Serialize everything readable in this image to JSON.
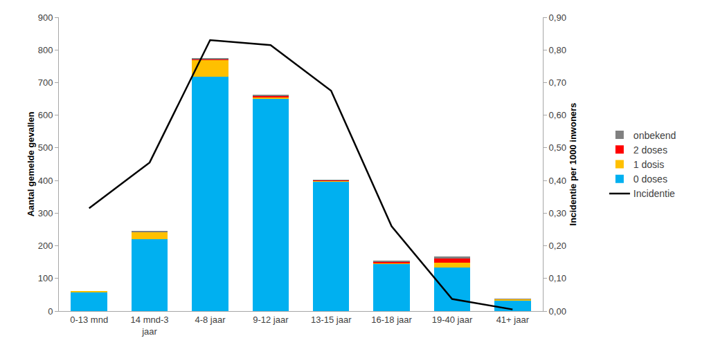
{
  "chart_data": {
    "type": "bar",
    "stacked": true,
    "grid": false,
    "legend": "right",
    "x_label": null,
    "y_label": "Aantal gemelde gevallen",
    "y2_label": "Incidentie per 1000 inwoners",
    "categories": [
      "0-13 mnd",
      "14 mnd-3 jaar",
      "4-8 jaar",
      "9-12 jaar",
      "13-15 jaar",
      "16-18 jaar",
      "19-40 jaar",
      "41+ jaar"
    ],
    "ylim": [
      0,
      900
    ],
    "yticks": [
      0,
      100,
      200,
      300,
      400,
      500,
      600,
      700,
      800,
      900
    ],
    "y2lim": [
      0,
      0.9
    ],
    "y2ticks": [
      {
        "value": 0,
        "label": "0,00"
      },
      {
        "value": 0.1,
        "label": "0,10"
      },
      {
        "value": 0.2,
        "label": "0,20"
      },
      {
        "value": 0.3,
        "label": "0,30"
      },
      {
        "value": 0.4,
        "label": "0,40"
      },
      {
        "value": 0.5,
        "label": "0,50"
      },
      {
        "value": 0.6,
        "label": "0,60"
      },
      {
        "value": 0.7,
        "label": "0,70"
      },
      {
        "value": 0.8,
        "label": "0,80"
      },
      {
        "value": 0.9,
        "label": "0,90"
      }
    ],
    "series": [
      {
        "name": "Incidentie",
        "type": "line",
        "axis": "y2",
        "color": "#000000",
        "values": [
          0.315,
          0.455,
          0.83,
          0.815,
          0.675,
          0.26,
          0.037,
          0.005
        ]
      },
      {
        "name": "0 doses",
        "type": "bar",
        "color": "#00B0F0",
        "values": [
          58,
          220,
          718,
          650,
          395,
          145,
          133,
          33
        ]
      },
      {
        "name": "1 dosis",
        "type": "bar",
        "color": "#FFC000",
        "values": [
          2,
          22,
          52,
          5,
          5,
          3,
          15,
          3
        ]
      },
      {
        "name": "2 doses",
        "type": "bar",
        "color": "#FF0000",
        "values": [
          0,
          0,
          2,
          5,
          1,
          4,
          12,
          1
        ]
      },
      {
        "name": "onbekend",
        "type": "bar",
        "color": "#808080",
        "values": [
          0,
          2,
          3,
          2,
          1,
          2,
          8,
          1
        ]
      }
    ]
  }
}
